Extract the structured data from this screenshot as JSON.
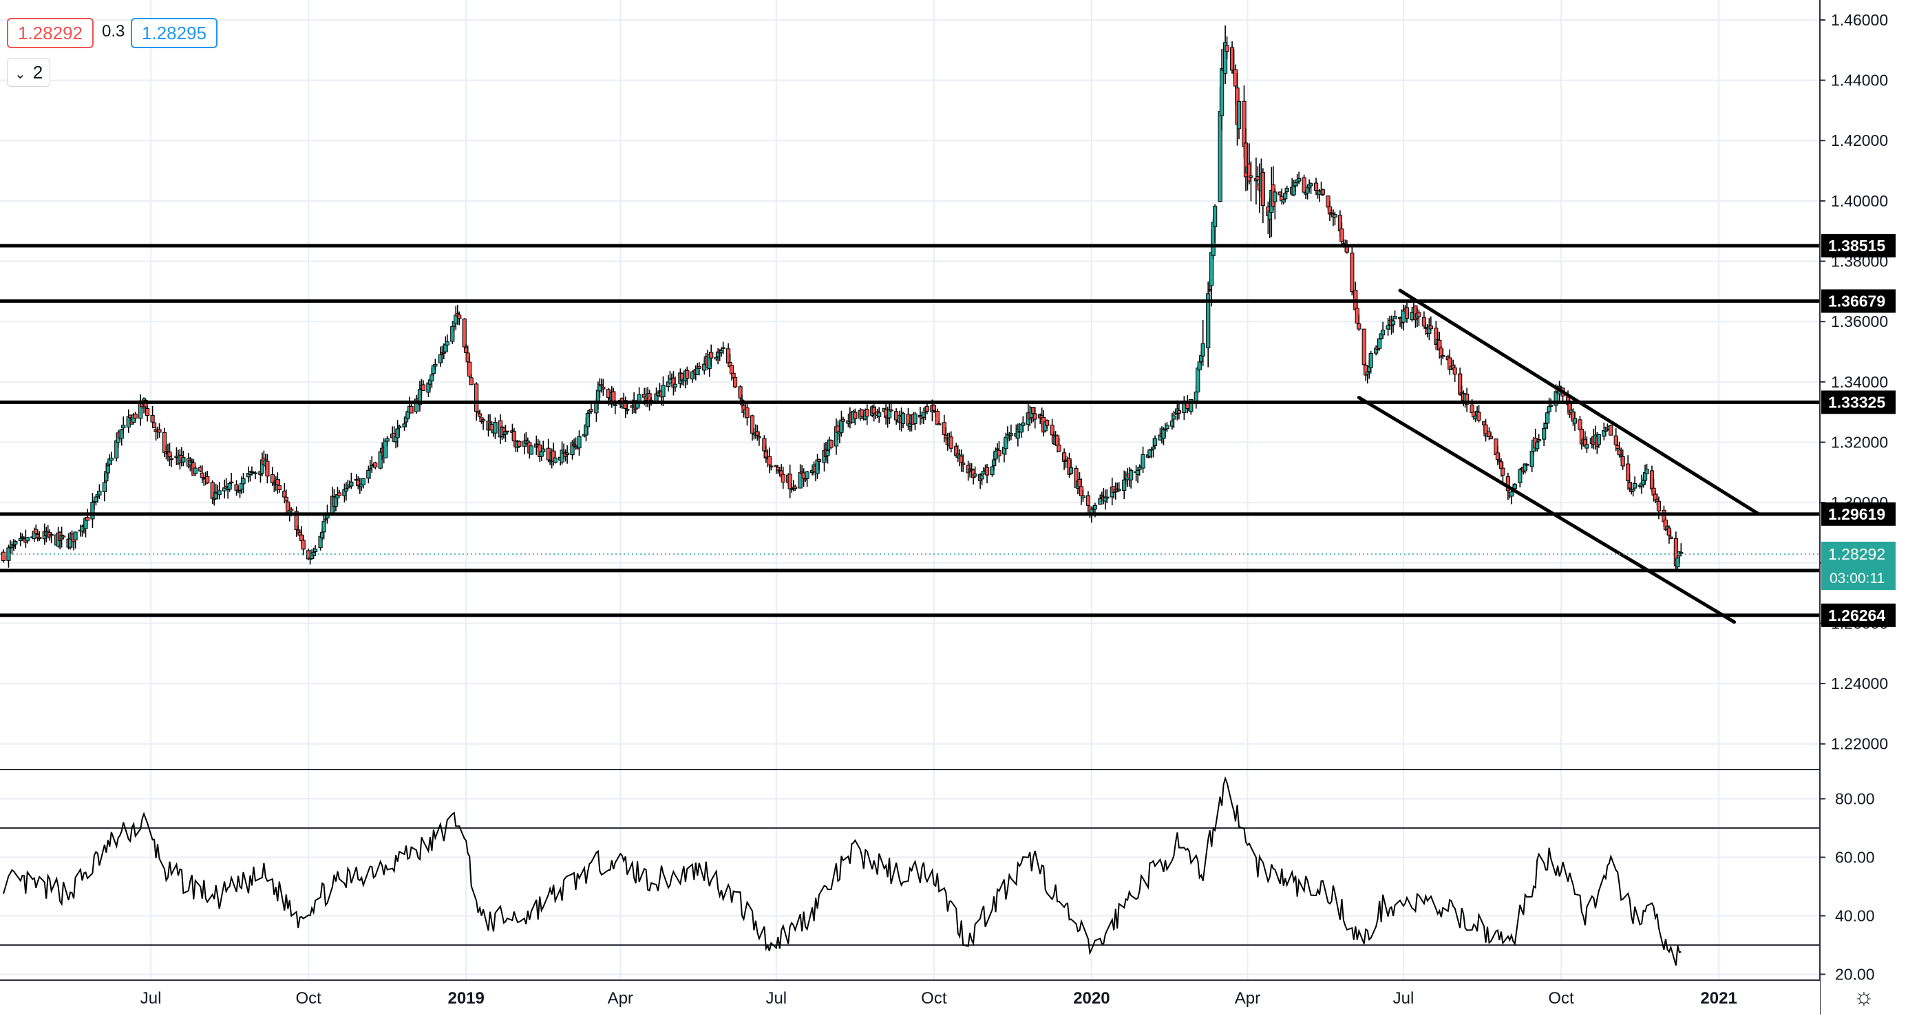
{
  "legend": {
    "bid": "1.28292",
    "spread": "0.3",
    "ask": "1.28295",
    "collapse_count": "2"
  },
  "colors": {
    "up": "#26a69a",
    "down": "#ef5350",
    "candle_outline": "#000000",
    "level_line": "#000000",
    "current_price": "#26a69a",
    "grid": "#e8eef5",
    "rsi": "#000000"
  },
  "chart_data": [
    {
      "type": "candlestick",
      "title": "",
      "x_ticks": [
        "Jul",
        "Oct",
        "2019",
        "Apr",
        "Jul",
        "Oct",
        "2020",
        "Apr",
        "Jul",
        "Oct",
        "2021"
      ],
      "y_ticks": [
        "1.46000",
        "1.44000",
        "1.42000",
        "1.40000",
        "1.38000",
        "1.36000",
        "1.34000",
        "1.32000",
        "1.30000",
        "1.28000",
        "1.26000",
        "1.24000",
        "1.22000"
      ],
      "ylim": [
        1.2115,
        1.4666
      ],
      "x_range": [
        "2018-04-04",
        "2021-03-01"
      ],
      "price_path": [
        [
          "2018-04-06",
          1.283
        ],
        [
          "2018-04-25",
          1.289
        ],
        [
          "2018-05-15",
          1.287
        ],
        [
          "2018-05-31",
          1.301
        ],
        [
          "2018-06-12",
          1.322
        ],
        [
          "2018-06-27",
          1.333
        ],
        [
          "2018-07-10",
          1.316
        ],
        [
          "2018-07-25",
          1.312
        ],
        [
          "2018-08-08",
          1.302
        ],
        [
          "2018-08-22",
          1.306
        ],
        [
          "2018-09-05",
          1.313
        ],
        [
          "2018-09-20",
          1.297
        ],
        [
          "2018-10-01",
          1.281
        ],
        [
          "2018-10-15",
          1.3
        ],
        [
          "2018-11-01",
          1.308
        ],
        [
          "2018-11-20",
          1.322
        ],
        [
          "2018-12-05",
          1.336
        ],
        [
          "2018-12-20",
          1.352
        ],
        [
          "2018-12-28",
          1.363
        ],
        [
          "2019-01-08",
          1.328
        ],
        [
          "2019-01-25",
          1.322
        ],
        [
          "2019-02-08",
          1.318
        ],
        [
          "2019-02-25",
          1.315
        ],
        [
          "2019-03-08",
          1.32
        ],
        [
          "2019-03-20",
          1.338
        ],
        [
          "2019-04-05",
          1.332
        ],
        [
          "2019-04-25",
          1.337
        ],
        [
          "2019-05-15",
          1.344
        ],
        [
          "2019-05-31",
          1.35
        ],
        [
          "2019-06-10",
          1.333
        ],
        [
          "2019-06-25",
          1.315
        ],
        [
          "2019-07-10",
          1.306
        ],
        [
          "2019-07-25",
          1.312
        ],
        [
          "2019-08-10",
          1.328
        ],
        [
          "2019-08-28",
          1.331
        ],
        [
          "2019-09-15",
          1.327
        ],
        [
          "2019-09-30",
          1.33
        ],
        [
          "2019-10-15",
          1.315
        ],
        [
          "2019-10-28",
          1.307
        ],
        [
          "2019-11-10",
          1.319
        ],
        [
          "2019-11-28",
          1.33
        ],
        [
          "2019-12-10",
          1.321
        ],
        [
          "2019-12-31",
          1.298
        ],
        [
          "2020-01-15",
          1.304
        ],
        [
          "2020-01-31",
          1.314
        ],
        [
          "2020-02-15",
          1.327
        ],
        [
          "2020-03-01",
          1.334
        ],
        [
          "2020-03-10",
          1.372
        ],
        [
          "2020-03-19",
          1.458
        ],
        [
          "2020-03-31",
          1.412
        ],
        [
          "2020-04-15",
          1.398
        ],
        [
          "2020-04-30",
          1.406
        ],
        [
          "2020-05-15",
          1.402
        ],
        [
          "2020-05-28",
          1.386
        ],
        [
          "2020-06-09",
          1.344
        ],
        [
          "2020-06-20",
          1.357
        ],
        [
          "2020-07-05",
          1.364
        ],
        [
          "2020-07-20",
          1.354
        ],
        [
          "2020-08-05",
          1.335
        ],
        [
          "2020-08-20",
          1.322
        ],
        [
          "2020-09-01",
          1.303
        ],
        [
          "2020-09-15",
          1.319
        ],
        [
          "2020-09-30",
          1.338
        ],
        [
          "2020-10-15",
          1.318
        ],
        [
          "2020-10-30",
          1.324
        ],
        [
          "2020-11-10",
          1.305
        ],
        [
          "2020-11-20",
          1.309
        ],
        [
          "2020-12-01",
          1.292
        ],
        [
          "2020-12-07",
          1.28
        ],
        [
          "2020-12-10",
          1.2829
        ]
      ],
      "horizontal_levels": [
        "1.38515",
        "1.36679",
        "1.33325",
        "1.29619",
        "1.27747",
        "1.26264"
      ],
      "trend_lines": [
        {
          "from": [
            "2020-06-29",
            1.3703
          ],
          "to": [
            "2021-01-24",
            1.2963
          ]
        },
        {
          "from": [
            "2020-06-05",
            1.3348
          ],
          "to": [
            "2021-01-10",
            1.2604
          ]
        }
      ],
      "current_price": "1.28292",
      "countdown": "03:00:11"
    },
    {
      "type": "line",
      "title": "",
      "y_ticks": [
        "80.00",
        "60.00",
        "40.00",
        "20.00"
      ],
      "ylim": [
        18,
        90
      ],
      "reference_lines": [
        70,
        30
      ],
      "rsi_path": [
        [
          "2018-04-06",
          52
        ],
        [
          "2018-05-15",
          48
        ],
        [
          "2018-06-10",
          66
        ],
        [
          "2018-06-27",
          72
        ],
        [
          "2018-07-10",
          55
        ],
        [
          "2018-08-08",
          46
        ],
        [
          "2018-09-05",
          54
        ],
        [
          "2018-09-25",
          40
        ],
        [
          "2018-10-15",
          50
        ],
        [
          "2018-11-15",
          58
        ],
        [
          "2018-12-10",
          64
        ],
        [
          "2018-12-28",
          74
        ],
        [
          "2019-01-10",
          38
        ],
        [
          "2019-02-05",
          40
        ],
        [
          "2019-03-05",
          52
        ],
        [
          "2019-03-25",
          60
        ],
        [
          "2019-04-20",
          52
        ],
        [
          "2019-05-20",
          56
        ],
        [
          "2019-06-10",
          44
        ],
        [
          "2019-06-28",
          30
        ],
        [
          "2019-07-20",
          40
        ],
        [
          "2019-08-15",
          62
        ],
        [
          "2019-09-10",
          54
        ],
        [
          "2019-09-30",
          56
        ],
        [
          "2019-10-20",
          32
        ],
        [
          "2019-11-10",
          48
        ],
        [
          "2019-11-28",
          60
        ],
        [
          "2019-12-20",
          38
        ],
        [
          "2020-01-03",
          28
        ],
        [
          "2020-01-25",
          48
        ],
        [
          "2020-02-20",
          64
        ],
        [
          "2020-03-05",
          54
        ],
        [
          "2020-03-19",
          86
        ],
        [
          "2020-04-05",
          58
        ],
        [
          "2020-05-01",
          50
        ],
        [
          "2020-05-20",
          48
        ],
        [
          "2020-06-07",
          30
        ],
        [
          "2020-06-20",
          44
        ],
        [
          "2020-07-15",
          44
        ],
        [
          "2020-08-10",
          38
        ],
        [
          "2020-09-01",
          30
        ],
        [
          "2020-09-20",
          60
        ],
        [
          "2020-10-05",
          56
        ],
        [
          "2020-10-15",
          40
        ],
        [
          "2020-10-30",
          56
        ],
        [
          "2020-11-10",
          42
        ],
        [
          "2020-11-25",
          40
        ],
        [
          "2020-12-05",
          24
        ],
        [
          "2020-12-10",
          31
        ]
      ]
    }
  ]
}
